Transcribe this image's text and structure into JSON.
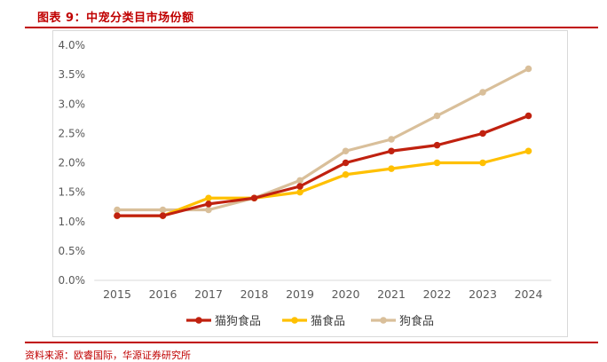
{
  "figure": {
    "title": "图表 9：中宠分类目市场份额",
    "source": "资料来源：欧睿国际，华源证券研究所"
  },
  "chart_data": {
    "type": "line",
    "title": "",
    "xlabel": "",
    "ylabel": "",
    "categories": [
      "2015",
      "2016",
      "2017",
      "2018",
      "2019",
      "2020",
      "2021",
      "2022",
      "2023",
      "2024"
    ],
    "ylim": [
      0,
      4.0
    ],
    "yticks": [
      0.0,
      0.5,
      1.0,
      1.5,
      2.0,
      2.5,
      3.0,
      3.5,
      4.0
    ],
    "ytick_labels": [
      "0.0%",
      "0.5%",
      "1.0%",
      "1.5%",
      "2.0%",
      "2.5%",
      "3.0%",
      "3.5%",
      "4.0%"
    ],
    "grid": false,
    "legend_position": "bottom",
    "series": [
      {
        "name": "猫狗食品",
        "color": "#c0210f",
        "values": [
          1.1,
          1.1,
          1.3,
          1.4,
          1.6,
          2.0,
          2.2,
          2.3,
          2.5,
          2.8
        ]
      },
      {
        "name": "猫食品",
        "color": "#ffc000",
        "values": [
          1.1,
          1.1,
          1.4,
          1.4,
          1.5,
          1.8,
          1.9,
          2.0,
          2.0,
          2.2
        ]
      },
      {
        "name": "狗食品",
        "color": "#d9bf9a",
        "values": [
          1.2,
          1.2,
          1.2,
          1.4,
          1.7,
          2.2,
          2.4,
          2.8,
          3.2,
          3.6
        ]
      }
    ]
  }
}
